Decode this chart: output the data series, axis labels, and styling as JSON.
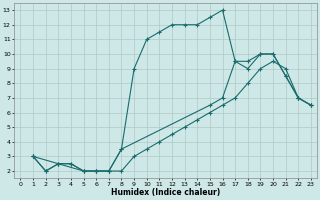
{
  "xlabel": "Humidex (Indice chaleur)",
  "background_color": "#cee8e8",
  "grid_color": "#b0c8c8",
  "line_color": "#1a6b6b",
  "xlim": [
    -0.5,
    23.5
  ],
  "ylim": [
    1.5,
    13.5
  ],
  "xticks": [
    0,
    1,
    2,
    3,
    4,
    5,
    6,
    7,
    8,
    9,
    10,
    11,
    12,
    13,
    14,
    15,
    16,
    17,
    18,
    19,
    20,
    21,
    22,
    23
  ],
  "yticks": [
    2,
    3,
    4,
    5,
    6,
    7,
    8,
    9,
    10,
    11,
    12,
    13
  ],
  "series1_x": [
    1,
    2,
    3,
    4,
    5,
    6,
    7,
    8,
    9,
    10,
    11,
    12,
    13,
    14,
    15,
    16,
    17,
    18,
    19,
    20,
    21,
    22,
    23
  ],
  "series1_y": [
    3,
    2,
    2.5,
    2.5,
    2,
    2,
    2,
    3.5,
    9,
    11,
    11.5,
    12,
    12,
    12,
    12.5,
    13,
    9.5,
    9.5,
    10,
    10,
    8.5,
    7,
    6.5
  ],
  "series2_x": [
    1,
    3,
    5,
    6,
    7,
    8,
    15,
    16,
    17,
    18,
    19,
    20,
    21,
    22,
    23
  ],
  "series2_y": [
    3,
    2.5,
    2,
    2,
    2,
    3.5,
    6.5,
    7,
    9.5,
    9,
    10,
    10,
    8.5,
    7,
    6.5
  ],
  "series3_x": [
    1,
    2,
    3,
    4,
    5,
    6,
    7,
    8,
    9,
    10,
    11,
    12,
    13,
    14,
    15,
    16,
    17,
    18,
    19,
    20,
    21,
    22,
    23
  ],
  "series3_y": [
    3,
    2,
    2.5,
    2.5,
    2,
    2,
    2,
    2,
    3,
    3.5,
    4,
    4.5,
    5,
    5.5,
    6,
    6.5,
    7,
    8,
    9,
    9.5,
    9,
    7,
    6.5
  ]
}
